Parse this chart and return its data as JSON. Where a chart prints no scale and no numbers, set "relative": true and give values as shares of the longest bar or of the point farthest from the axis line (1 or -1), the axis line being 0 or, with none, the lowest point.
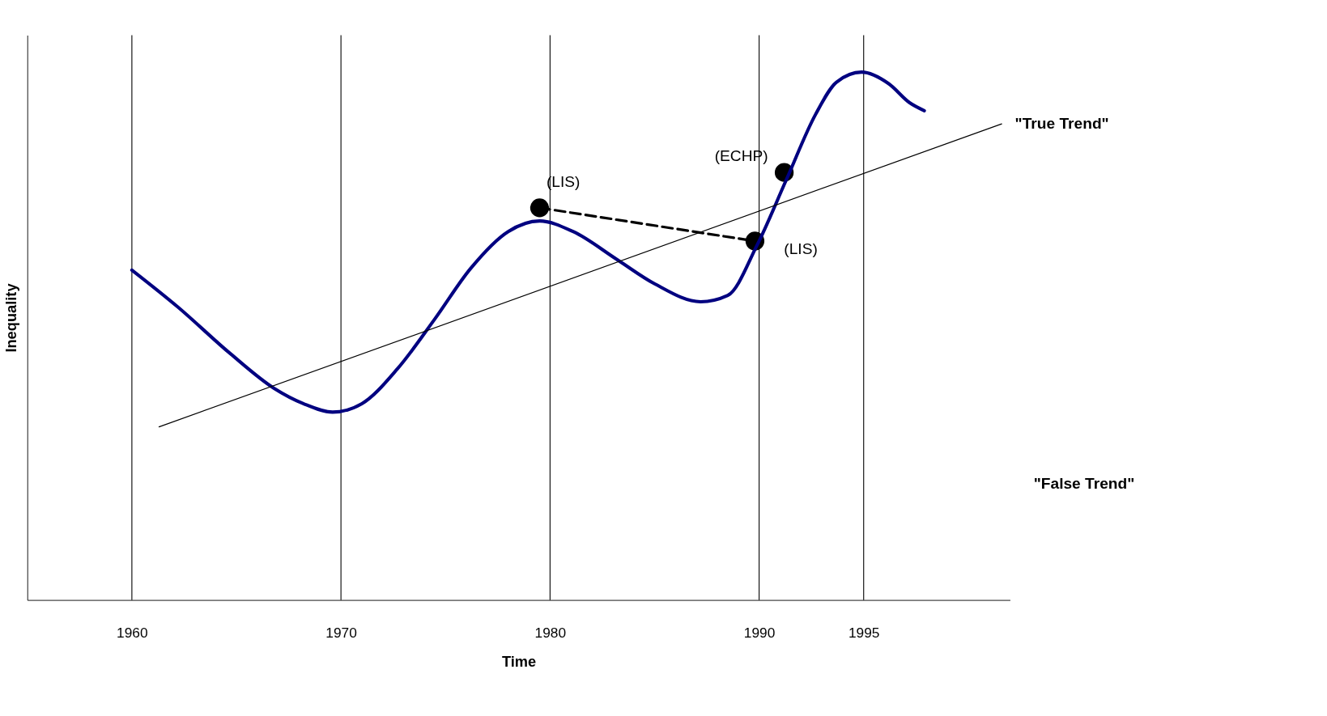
{
  "chart_data": {
    "type": "line",
    "relative": true,
    "xlabel": "Time",
    "ylabel": "Inequality",
    "xlim": [
      1955,
      2002
    ],
    "xticks": [
      1960,
      1970,
      1980,
      1990,
      1995
    ],
    "series": [
      {
        "color": "#000080",
        "x": [
          1960,
          1962.2,
          1964.7,
          1966.8,
          1968.2,
          1969.6,
          1971.0,
          1972.7,
          1974.5,
          1976.2,
          1978.0,
          1979.5,
          1981.1,
          1983.2,
          1985.0,
          1987.2,
          1988.5,
          1989.9,
          1991.3,
          1992.7,
          1993.7,
          1994.9,
          1996.2,
          1997.2,
          1997.9
        ],
        "values": [
          0.625,
          0.555,
          0.467,
          0.401,
          0.372,
          0.356,
          0.372,
          0.438,
          0.533,
          0.628,
          0.698,
          0.718,
          0.698,
          0.645,
          0.599,
          0.565,
          0.577,
          0.672,
          0.796,
          0.92,
          0.981,
          1.0,
          0.978,
          0.942,
          0.927
        ]
      },
      {
        "name": "\"True Trend\"",
        "color": "#000000",
        "x": [
          1961.3,
          2001.6
        ],
        "values": [
          0.328,
          0.902
        ]
      },
      {
        "name": "\"False Trend\"",
        "color": "#000000",
        "line_style": "dashed",
        "x": [
          1979.5,
          1989.8
        ],
        "values": [
          0.743,
          0.68
        ]
      },
      {
        "type": "scatter",
        "marker": "circle",
        "color": "#000000",
        "x": [
          1979.5,
          1989.8,
          1991.2
        ],
        "values": [
          0.743,
          0.68,
          0.81
        ]
      }
    ],
    "ref_lines": [
      {
        "axis": "x",
        "value": 1960,
        "color": "#000000"
      },
      {
        "axis": "x",
        "value": 1970,
        "color": "#000000"
      },
      {
        "axis": "x",
        "value": 1980,
        "color": "#000000"
      },
      {
        "axis": "x",
        "value": 1990,
        "color": "#000000"
      },
      {
        "axis": "x",
        "value": 1995,
        "color": "#000000"
      }
    ],
    "annotations": [
      {
        "text": "(LIS)",
        "x": 1979.5,
        "y": 0.743
      },
      {
        "text": "(LIS)",
        "x": 1989.8,
        "y": 0.68
      },
      {
        "text": "(ECHP)",
        "x": 1991.2,
        "y": 0.81
      }
    ]
  }
}
